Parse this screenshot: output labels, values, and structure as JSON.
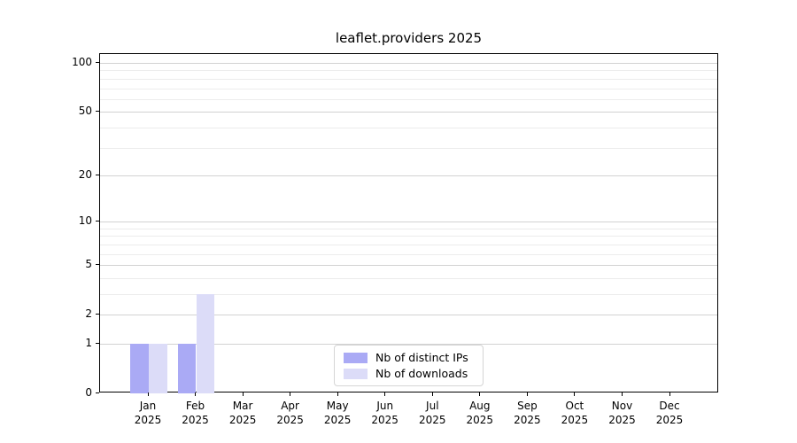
{
  "chart_data": {
    "type": "bar",
    "title": "leaflet.providers 2025",
    "xlabel": "",
    "ylabel": "",
    "categories": [
      "Jan",
      "Feb",
      "Mar",
      "Apr",
      "May",
      "Jun",
      "Jul",
      "Aug",
      "Sep",
      "Oct",
      "Nov",
      "Dec"
    ],
    "x_tick_year": "2025",
    "series": [
      {
        "name": "Nb of distinct IPs",
        "color": "#aaaaf5",
        "values": [
          1,
          1,
          0,
          0,
          0,
          0,
          0,
          0,
          0,
          0,
          0,
          0
        ]
      },
      {
        "name": "Nb of downloads",
        "color": "#dcdcf8",
        "values": [
          1,
          3,
          0,
          0,
          0,
          0,
          0,
          0,
          0,
          0,
          0,
          0
        ]
      }
    ],
    "y_axis": {
      "scale": "log1p",
      "ticks": [
        0,
        1,
        2,
        5,
        10,
        20,
        50,
        100
      ],
      "minor_gridlines": [
        3,
        4,
        6,
        7,
        8,
        9,
        30,
        40,
        60,
        70,
        80,
        90
      ],
      "ylim": [
        0,
        114
      ]
    },
    "grid": true,
    "legend_position": "lower center",
    "colors": {
      "frame": "#000000",
      "background": "#ffffff",
      "major_grid": "#d2d2d2",
      "minor_grid": "#ececec",
      "text": "#000000"
    }
  }
}
